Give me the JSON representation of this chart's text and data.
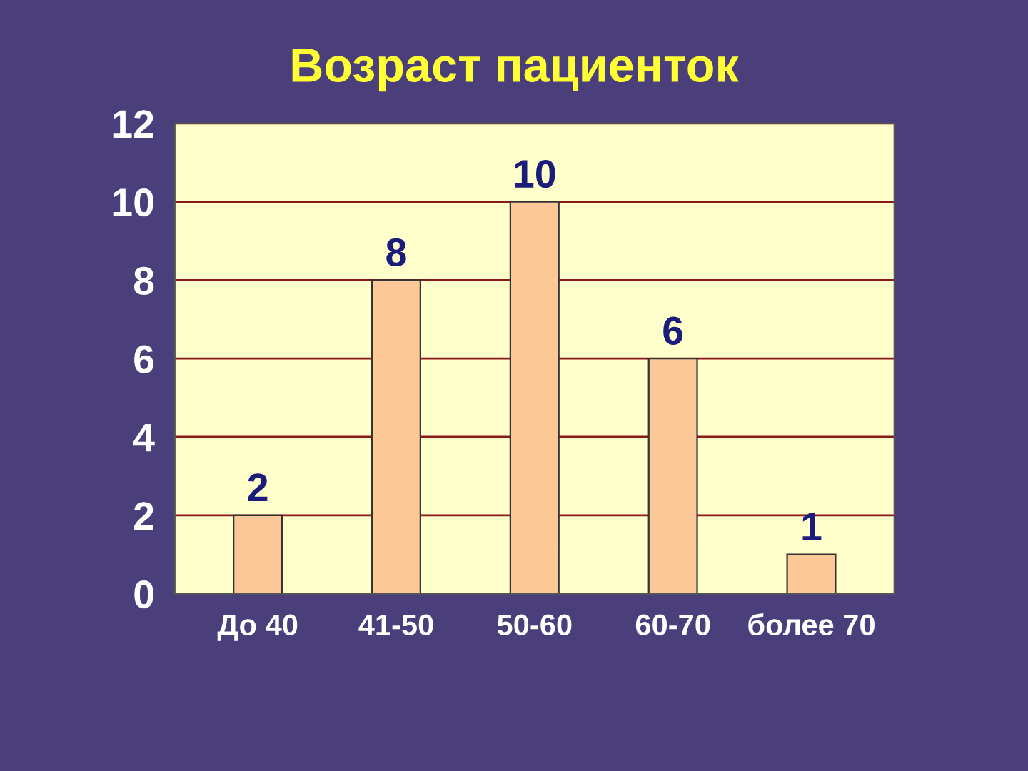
{
  "chart_data": {
    "type": "bar",
    "title": "Возраст пациенток",
    "categories": [
      "До 40",
      "41-50",
      "50-60",
      "60-70",
      "более 70"
    ],
    "values": [
      2,
      8,
      10,
      6,
      1
    ],
    "color": "#fcc898",
    "ylim": [
      0,
      12
    ],
    "yticks": [
      0,
      2,
      4,
      6,
      8,
      10,
      12
    ],
    "grid": "y",
    "data_labels": true
  }
}
